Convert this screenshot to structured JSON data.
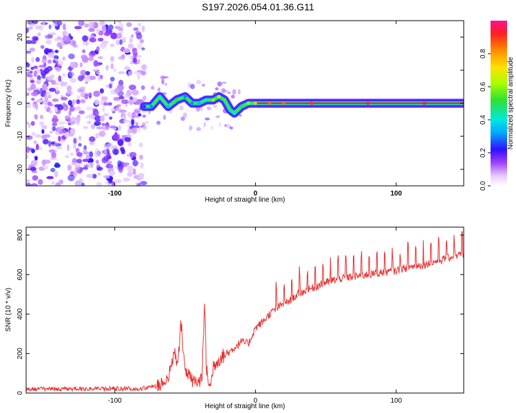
{
  "title": "S197.2026.054.01.36.G11",
  "colors": {
    "signal": "#e83030",
    "scatter": "#7a2fe0",
    "ridge_core": "#ff2020",
    "frame": "#000000"
  },
  "chart_data": [
    {
      "type": "heatmap",
      "title": "S197.2026.054.01.36.G11",
      "xlabel": "Height of straight line (km)",
      "ylabel": "Frequency (Hz)",
      "xlim": [
        -163,
        148
      ],
      "ylim": [
        -25,
        25
      ],
      "xticks": [
        -100,
        0,
        100
      ],
      "xtick_labels": [
        "-100",
        "0",
        "100"
      ],
      "yticks": [
        -20,
        -10,
        0,
        10,
        20
      ],
      "ytick_labels": [
        "-20",
        "-10",
        "0",
        "10",
        "20"
      ],
      "colorbar": {
        "label": "Normalized spectral amplitude",
        "range": [
          0,
          1
        ],
        "ticks": [
          0.0,
          0.2,
          0.4,
          0.6,
          0.8
        ],
        "tick_labels": [
          "0.0",
          "0.2",
          "0.4",
          "0.6",
          "0.8"
        ]
      },
      "noise_region_x": [
        -163,
        -79
      ],
      "ridge": {
        "x": [
          -79,
          -74,
          -68,
          -62,
          -56,
          -50,
          -45,
          -40,
          -35,
          -30,
          -26,
          -22,
          -18,
          -15,
          -10,
          -5,
          0,
          10,
          20,
          40,
          80,
          120,
          148
        ],
        "freq": [
          -1,
          -1,
          2,
          -1,
          1,
          2,
          0,
          0,
          1,
          1,
          2,
          1,
          -2,
          -3,
          -1,
          0,
          0,
          0,
          0,
          0,
          0,
          0,
          0
        ],
        "amplitude": [
          0.2,
          0.3,
          0.4,
          0.35,
          0.5,
          0.3,
          0.3,
          0.35,
          0.4,
          0.6,
          0.7,
          0.55,
          0.45,
          0.4,
          0.5,
          0.6,
          0.75,
          0.85,
          0.85,
          0.9,
          0.95,
          0.95,
          0.95
        ]
      }
    },
    {
      "type": "line",
      "xlabel": "Height of straight line (km)",
      "ylabel": "SNR (10 * v/v)",
      "xlim": [
        -163,
        148
      ],
      "ylim": [
        0,
        840
      ],
      "xticks": [
        -100,
        0,
        100
      ],
      "xtick_labels": [
        "-100",
        "0",
        "100"
      ],
      "yticks": [
        0,
        200,
        400,
        600,
        800
      ],
      "ytick_labels": [
        "0",
        "200",
        "400",
        "600",
        "800"
      ],
      "series": [
        {
          "name": "SNR",
          "x": [
            -163,
            -150,
            -140,
            -130,
            -120,
            -110,
            -100,
            -90,
            -80,
            -70,
            -65,
            -60,
            -58,
            -55,
            -53,
            -50,
            -48,
            -45,
            -40,
            -38,
            -36,
            -35,
            -32,
            -30,
            -25,
            -20,
            -15,
            -10,
            -5,
            0,
            5,
            10,
            15,
            20,
            25,
            30,
            40,
            50,
            60,
            70,
            80,
            90,
            100,
            110,
            120,
            130,
            140,
            145,
            148
          ],
          "y": [
            20,
            22,
            20,
            21,
            22,
            20,
            23,
            22,
            24,
            35,
            60,
            110,
            220,
            140,
            370,
            120,
            90,
            60,
            55,
            90,
            460,
            120,
            20,
            140,
            180,
            200,
            230,
            260,
            250,
            330,
            360,
            400,
            430,
            450,
            470,
            500,
            530,
            560,
            580,
            590,
            600,
            610,
            620,
            640,
            650,
            670,
            690,
            700,
            700
          ]
        }
      ]
    }
  ]
}
